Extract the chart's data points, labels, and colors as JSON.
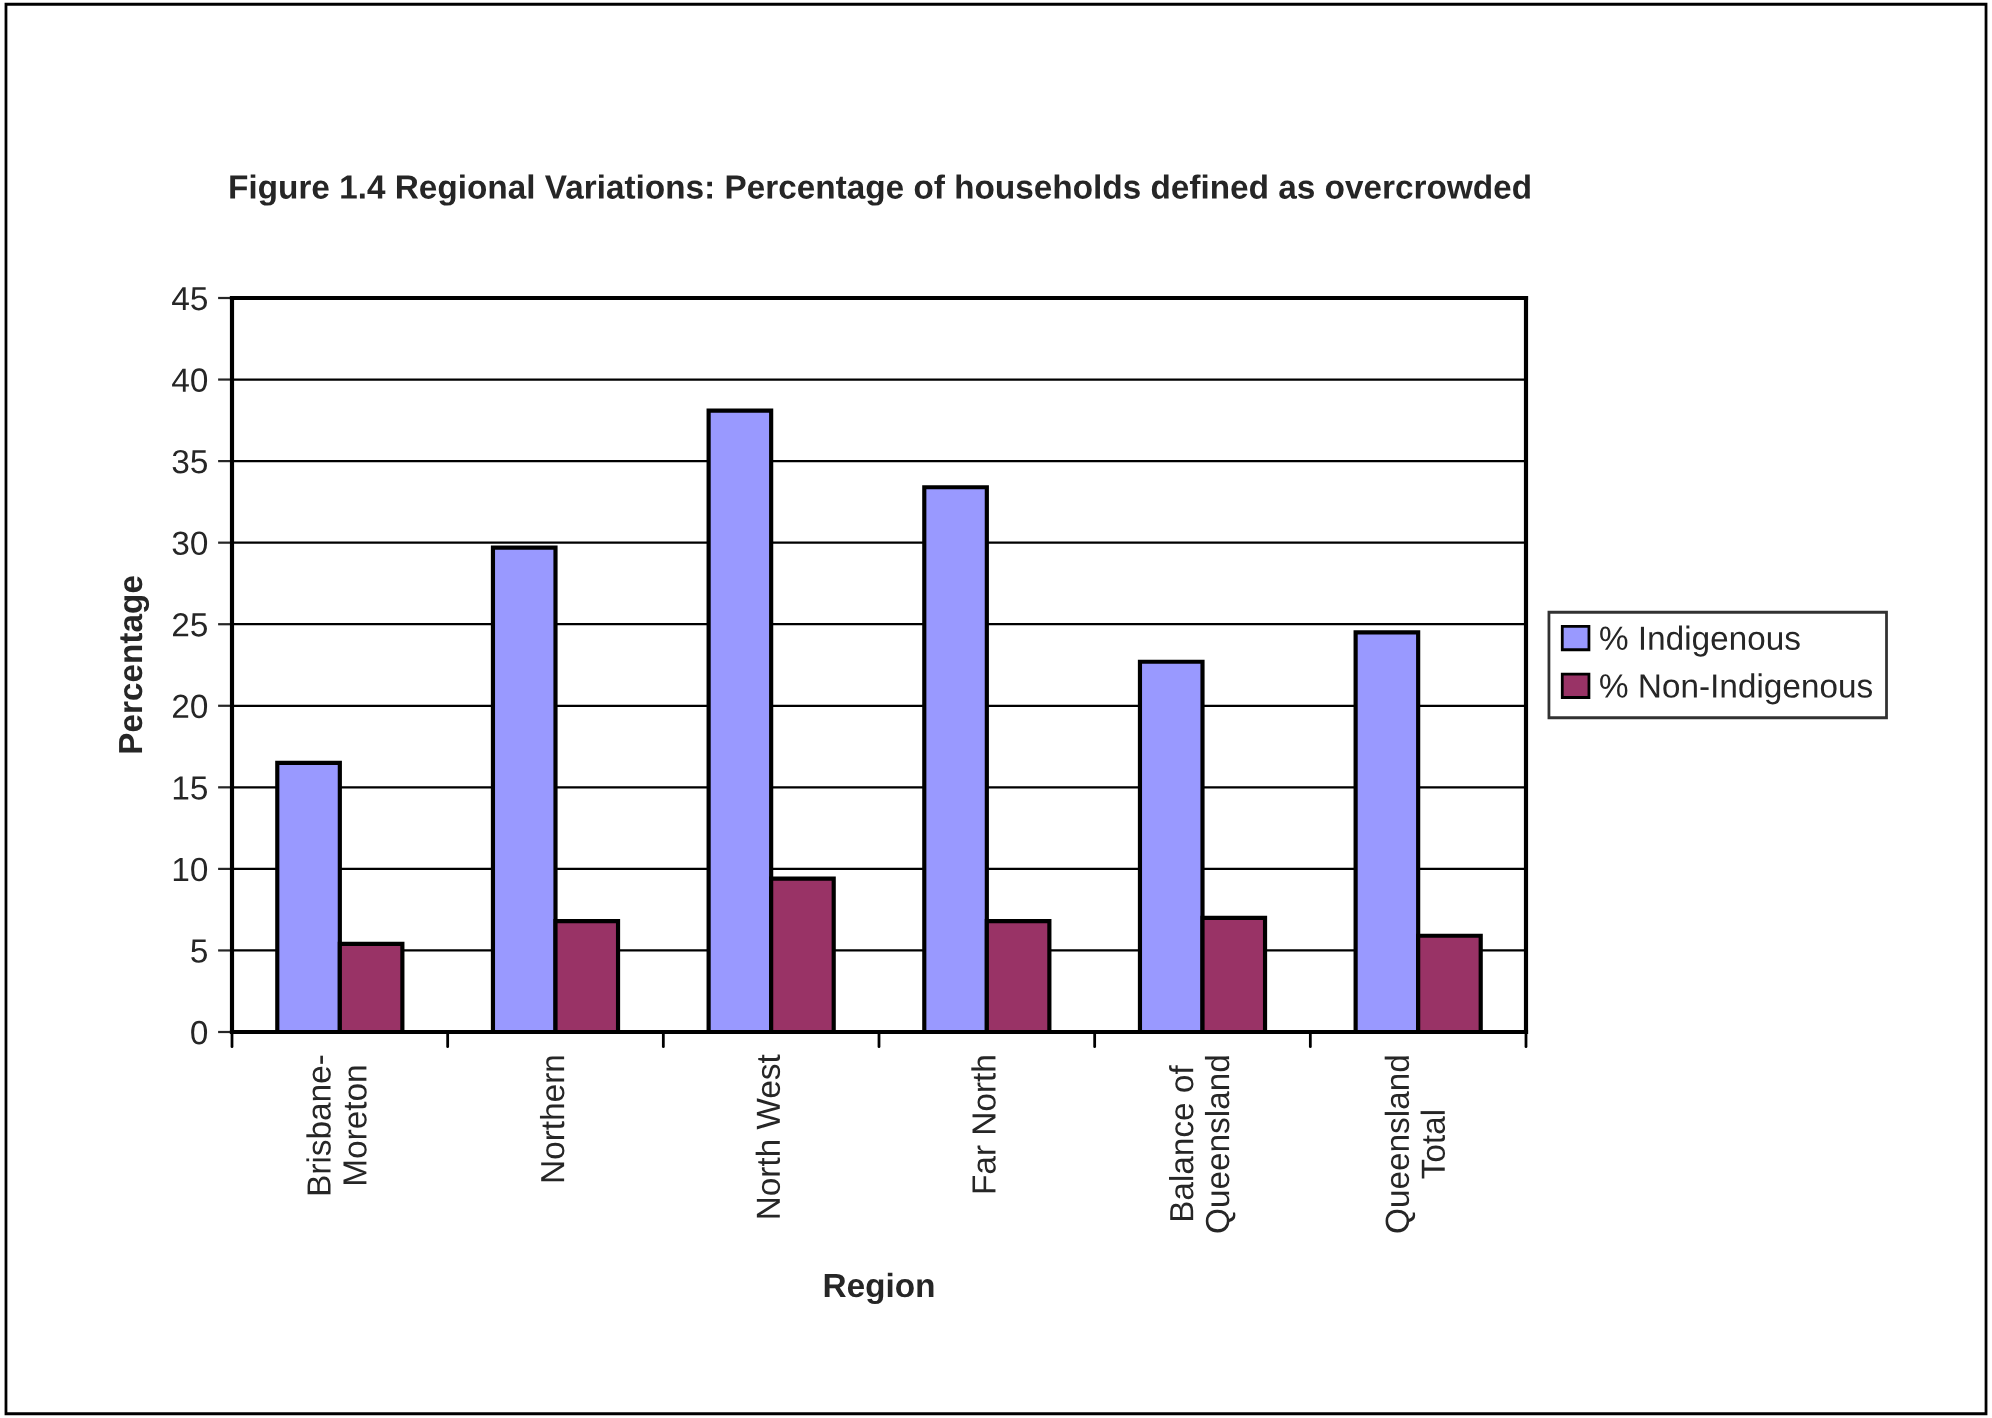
{
  "chart_data": {
    "type": "bar",
    "title": "Figure 1.4 Regional Variations: Percentage of households defined as overcrowded",
    "xlabel": "Region",
    "ylabel": "Percentage",
    "categories": [
      "Brisbane-\nMoreton",
      "Northern",
      "North West",
      "Far North",
      "Balance of\nQueensland",
      "Queensland\nTotal"
    ],
    "series": [
      {
        "name": "% Indigenous",
        "color": "#9999ff",
        "values": [
          16.5,
          29.7,
          38.1,
          33.4,
          22.7,
          24.5
        ]
      },
      {
        "name": "% Non-Indigenous",
        "color": "#993366",
        "values": [
          5.4,
          6.8,
          9.4,
          6.8,
          7.0,
          5.9
        ]
      }
    ],
    "ylim": [
      0,
      45
    ],
    "yticks": [
      0,
      5,
      10,
      15,
      20,
      25,
      30,
      35,
      40,
      45
    ],
    "grid": "y",
    "legend": "right"
  }
}
